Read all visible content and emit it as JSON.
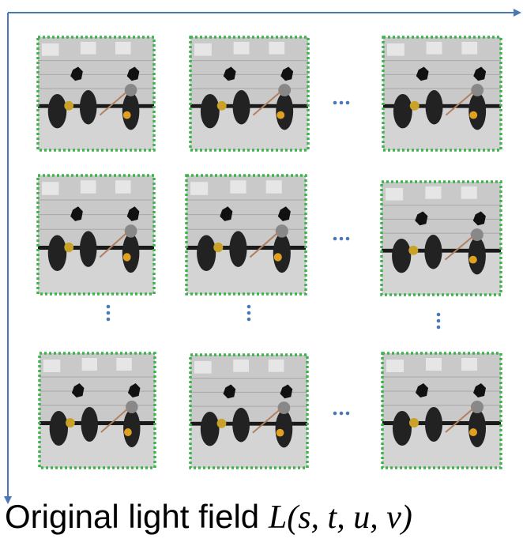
{
  "caption": {
    "text": "Original light field",
    "math": "L(s, t, u, v)"
  }
}
